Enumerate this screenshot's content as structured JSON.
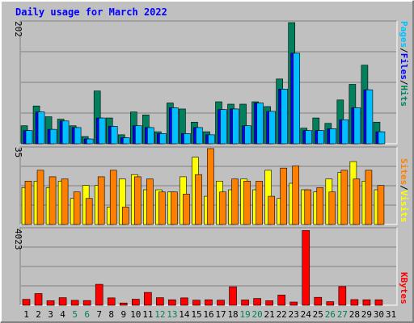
{
  "chart_data": [
    {
      "type": "bar",
      "title": "Daily usage for March 2022",
      "panel": "hits-files-pages",
      "ymax_label": "202",
      "ylim": [
        0,
        202
      ],
      "side_labels": [
        "Pages",
        "/",
        "Files",
        "/",
        "Hits"
      ],
      "categories": [
        "1",
        "2",
        "3",
        "4",
        "5",
        "6",
        "7",
        "8",
        "9",
        "10",
        "11",
        "12",
        "13",
        "14",
        "15",
        "16",
        "17",
        "18",
        "19",
        "20",
        "21",
        "22",
        "23",
        "24",
        "25",
        "26",
        "27",
        "28",
        "29",
        "30",
        "31"
      ],
      "series": [
        {
          "name": "Hits",
          "values": [
            30,
            63,
            45,
            41,
            30,
            12,
            88,
            43,
            15,
            53,
            48,
            20,
            68,
            58,
            36,
            20,
            70,
            66,
            66,
            70,
            62,
            108,
            202,
            26,
            43,
            34,
            73,
            99,
            131,
            36,
            0
          ]
        },
        {
          "name": "Files",
          "values": [
            22,
            53,
            24,
            38,
            27,
            8,
            43,
            29,
            10,
            30,
            27,
            17,
            60,
            17,
            27,
            15,
            57,
            58,
            30,
            68,
            54,
            91,
            151,
            22,
            22,
            25,
            40,
            60,
            90,
            20,
            0
          ]
        },
        {
          "name": "Pages",
          "values": [
            22,
            53,
            24,
            38,
            27,
            8,
            43,
            29,
            10,
            30,
            27,
            17,
            60,
            17,
            27,
            15,
            57,
            58,
            30,
            68,
            54,
            91,
            151,
            22,
            22,
            25,
            40,
            60,
            90,
            20,
            0
          ]
        }
      ]
    },
    {
      "type": "bar",
      "panel": "visits-sites",
      "ymax_label": "35",
      "ylim": [
        0,
        35
      ],
      "side_labels": [
        "Sites",
        "/",
        "Visits"
      ],
      "categories": [
        "1",
        "2",
        "3",
        "4",
        "5",
        "6",
        "7",
        "8",
        "9",
        "10",
        "11",
        "12",
        "13",
        "14",
        "15",
        "16",
        "17",
        "18",
        "19",
        "20",
        "21",
        "22",
        "23",
        "24",
        "25",
        "26",
        "27",
        "28",
        "29",
        "30",
        "31"
      ],
      "series": [
        {
          "name": "Visits",
          "values": [
            17,
            20,
            17,
            20,
            12,
            18,
            18,
            8,
            21,
            23,
            16,
            16,
            15,
            22,
            31,
            13,
            20,
            16,
            21,
            16,
            25,
            12,
            19,
            16,
            15,
            21,
            24,
            29,
            20,
            16,
            0
          ]
        },
        {
          "name": "Sites",
          "values": [
            20,
            25,
            22,
            21,
            15,
            12,
            22,
            25,
            8,
            22,
            21,
            15,
            15,
            14,
            23,
            35,
            15,
            21,
            20,
            20,
            13,
            26,
            27,
            16,
            17,
            15,
            25,
            21,
            25,
            18,
            0
          ]
        }
      ]
    },
    {
      "type": "bar",
      "panel": "kbytes",
      "ymax_label": "4023",
      "ylim": [
        0,
        4023
      ],
      "side_labels": [
        "KBytes"
      ],
      "categories": [
        "1",
        "2",
        "3",
        "4",
        "5",
        "6",
        "7",
        "8",
        "9",
        "10",
        "11",
        "12",
        "13",
        "14",
        "15",
        "16",
        "17",
        "18",
        "19",
        "20",
        "21",
        "22",
        "23",
        "24",
        "25",
        "26",
        "27",
        "28",
        "29",
        "30",
        "31"
      ],
      "weekend_days": [
        "5",
        "6",
        "12",
        "13",
        "19",
        "20",
        "26",
        "27"
      ],
      "series": [
        {
          "name": "KBytes",
          "values": [
            312,
            620,
            240,
            400,
            260,
            250,
            1110,
            390,
            120,
            320,
            680,
            400,
            290,
            390,
            270,
            290,
            270,
            980,
            280,
            360,
            240,
            540,
            170,
            3960,
            420,
            190,
            990,
            300,
            290,
            290,
            0
          ]
        }
      ]
    }
  ],
  "colors": {
    "hits": "#00805c",
    "files": "#0000ff",
    "pages": "#00c0ff",
    "visits": "#ffff00",
    "sites": "#ff8000",
    "kbytes": "#ff0000",
    "title": "#0000ff",
    "weekday_label": "#000000",
    "weekend_label": "#00805c",
    "panel_bg": "#c0c0c0",
    "frame_bg": "#c0c0c0"
  }
}
